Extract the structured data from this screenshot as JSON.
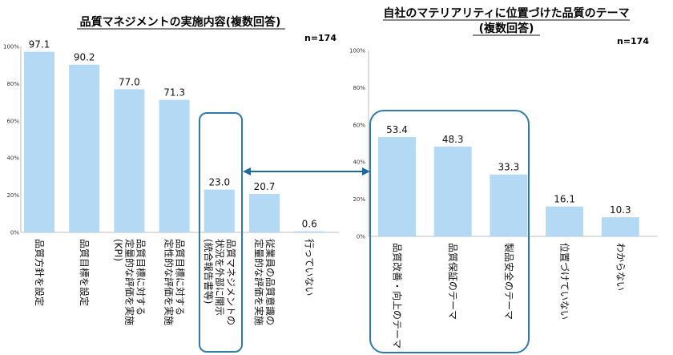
{
  "chart_data": [
    {
      "type": "bar",
      "title": "品質マネジメントの実施内容(複数回答)",
      "sample_size": "n=174",
      "ylim": [
        0,
        100
      ],
      "yticks": [
        "0%",
        "20%",
        "40%",
        "60%",
        "80%",
        "100%"
      ],
      "categories": [
        "品質方針を設定",
        "品質目標を設定",
        "品質目標に対する定量的な評価を実施(KPI)",
        "品質目標に対する定性的な評価を実施",
        "品質マネジメントの状況を外部に開示(統合報告書等)",
        "従業員の品質意識の定量的な評価を実施",
        "行っていない"
      ],
      "category_lines": [
        [
          "品質方針を設定"
        ],
        [
          "品質目標を設定"
        ],
        [
          "品質目標に対する",
          "定量的な評価を実施",
          "(KPI)"
        ],
        [
          "品質目標に対する",
          "定性的な評価を実施"
        ],
        [
          "品質マネジメントの",
          "状況を外部に開示",
          "(統合報告書等)"
        ],
        [
          "従業員の品質意識の",
          "定量的な評価を実施"
        ],
        [
          "行っていない"
        ]
      ],
      "values": [
        97.1,
        90.2,
        77.0,
        71.3,
        23.0,
        20.7,
        0.6
      ],
      "value_labels": [
        "97.1",
        "90.2",
        "77.0",
        "71.3",
        "23.0",
        "20.7",
        "0.6"
      ],
      "bar_color": "#b3d9f5"
    },
    {
      "type": "bar",
      "title_lines": [
        "自社のマテリアリティに位置づけた品質のテーマ",
        "(複数回答)"
      ],
      "sample_size": "n=174",
      "ylim": [
        0,
        100
      ],
      "yticks": [
        "0%",
        "20%",
        "40%",
        "60%",
        "80%",
        "100%"
      ],
      "categories": [
        "品質改善・向上のテーマ",
        "品質保証のテーマ",
        "製品安全のテーマ",
        "位置づけていない",
        "わからない"
      ],
      "category_lines": [
        [
          "品質改善・向上のテーマ"
        ],
        [
          "品質保証のテーマ"
        ],
        [
          "製品安全のテーマ"
        ],
        [
          "位置づけていない"
        ],
        [
          "わからない"
        ]
      ],
      "values": [
        53.4,
        48.3,
        33.3,
        16.1,
        10.3
      ],
      "value_labels": [
        "53.4",
        "48.3",
        "33.3",
        "16.1",
        "10.3"
      ],
      "bar_color": "#b3d9f5"
    }
  ],
  "highlight_color": "#2f7aa8",
  "arrow_color": "#1f6a99"
}
